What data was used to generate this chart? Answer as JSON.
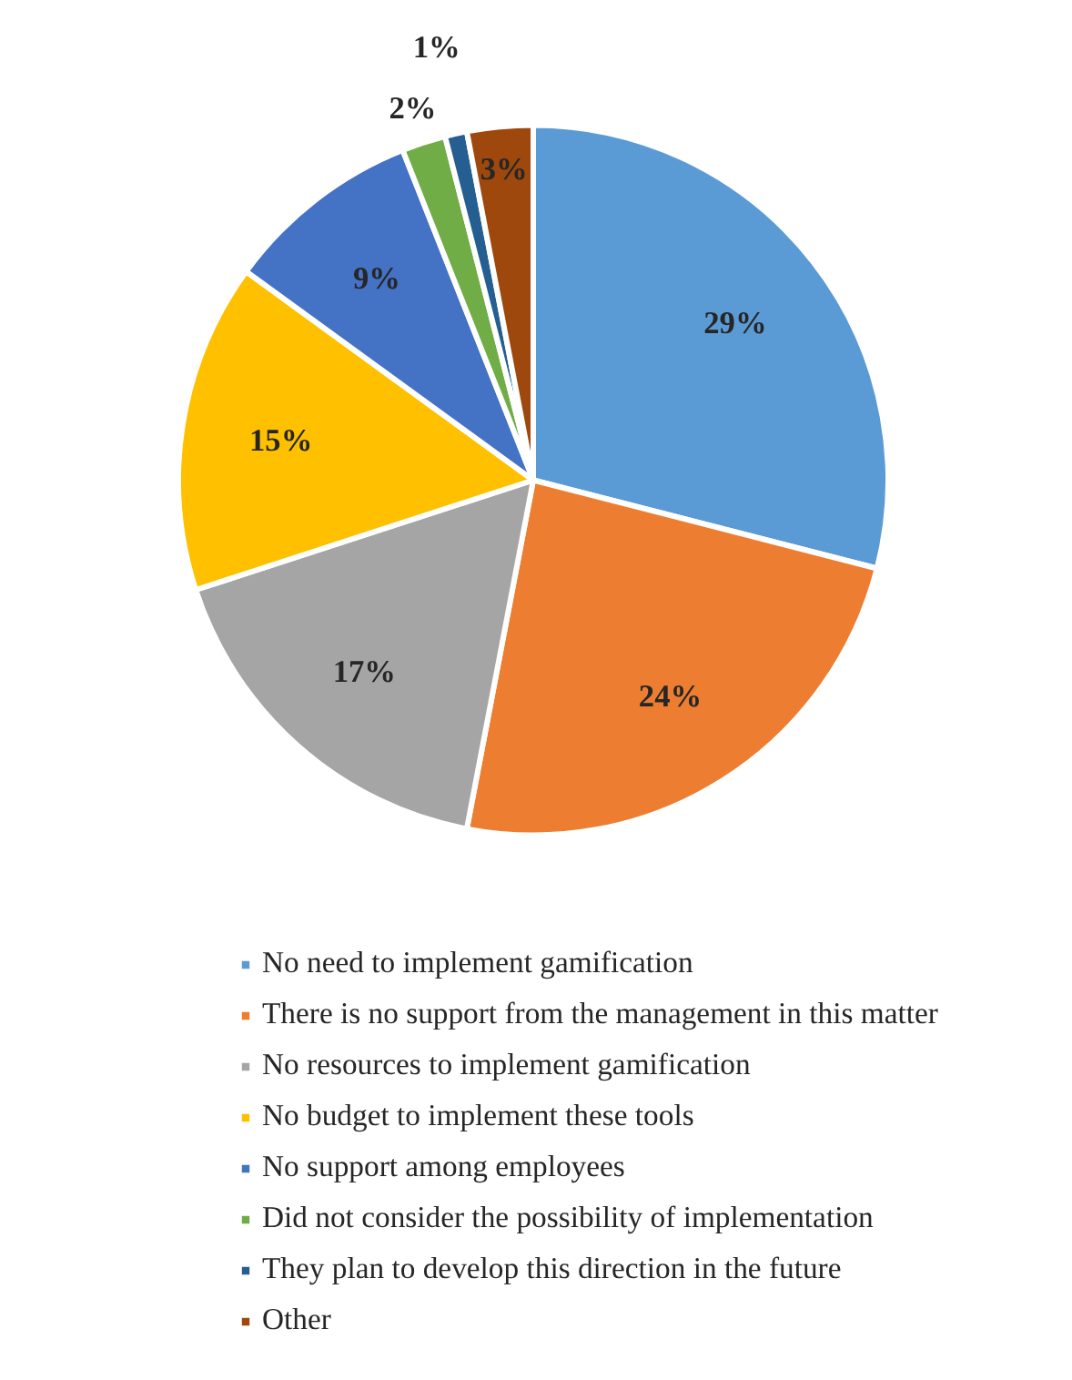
{
  "chart_data": {
    "type": "pie",
    "categories": [
      "No need to implement gamification",
      "There is no support from the management in this matter",
      "No resources to implement gamification",
      "No budget to implement these tools",
      "No support among employees",
      "Did not consider the possibility of implementation",
      "They plan to develop this direction in the future",
      "Other"
    ],
    "values": [
      29,
      24,
      17,
      15,
      9,
      2,
      1,
      3
    ],
    "colors": [
      "#5b9bd5",
      "#ed7d31",
      "#a5a5a5",
      "#ffc000",
      "#4472c4",
      "#70ad47",
      "#255e91",
      "#9e480e"
    ],
    "value_labels": [
      "29%",
      "24%",
      "17%",
      "15%",
      "9%",
      "2%",
      "1%",
      "3%"
    ],
    "legend": "bottom"
  }
}
